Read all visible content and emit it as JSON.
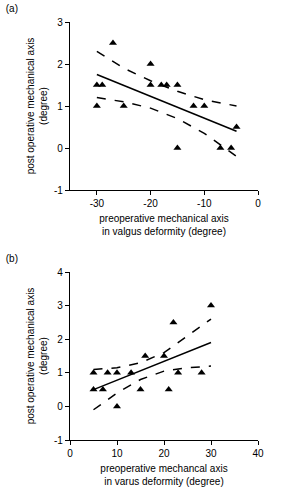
{
  "chart_data": [
    {
      "type": "scatter",
      "title": "(a)",
      "x_label": [
        "preoperative mechanical axis",
        "in valgus deformity (degree)"
      ],
      "y_label": [
        "post operative mechanical axis",
        "(degree)"
      ],
      "xlim": [
        -35,
        0
      ],
      "xticks": [
        -30,
        -20,
        -10,
        0
      ],
      "ylim": [
        -1,
        3
      ],
      "yticks": [
        -1,
        0,
        1,
        2,
        3
      ],
      "grid": false,
      "series": [
        {
          "type": "scatter",
          "marker": "triangle-up",
          "color": "#000000",
          "x": [
            -30,
            -29,
            -30,
            -27,
            -25,
            -20,
            -20,
            -18,
            -17,
            -15,
            -15,
            -12,
            -10,
            -7,
            -5,
            -4
          ],
          "values": [
            1.5,
            1.5,
            1.0,
            2.5,
            1.0,
            2.0,
            1.5,
            1.5,
            1.5,
            1.5,
            0.0,
            1.0,
            1.0,
            0.0,
            0.0,
            0.5
          ]
        },
        {
          "type": "line",
          "line_style": "solid",
          "color": "#000000",
          "x": [
            -30,
            -4
          ],
          "values": [
            1.75,
            0.4
          ]
        },
        {
          "type": "line",
          "line_style": "dashed",
          "color": "#000000",
          "x": [
            -30,
            -25,
            -20,
            -15,
            -10,
            -4
          ],
          "values": [
            2.3,
            1.9,
            1.6,
            1.35,
            1.15,
            1.0
          ]
        },
        {
          "type": "line",
          "line_style": "dashed",
          "color": "#000000",
          "x": [
            -30,
            -25,
            -20,
            -15,
            -10,
            -4
          ],
          "values": [
            1.2,
            1.1,
            0.95,
            0.7,
            0.35,
            -0.2
          ]
        }
      ]
    },
    {
      "type": "scatter",
      "title": "(b)",
      "x_label": [
        "preoperative mechancal axis",
        "in varus deformity (degree)"
      ],
      "y_label": [
        "post operative mechanical axis",
        "(degree)"
      ],
      "xlim": [
        0,
        40
      ],
      "xticks": [
        0,
        10,
        20,
        30,
        40
      ],
      "ylim": [
        -1,
        4
      ],
      "yticks": [
        -1,
        0,
        1,
        2,
        3,
        4
      ],
      "grid": false,
      "series": [
        {
          "type": "scatter",
          "marker": "triangle-up",
          "color": "#000000",
          "x": [
            5,
            5,
            7,
            8,
            10,
            10,
            13,
            15,
            16,
            20,
            21,
            22,
            23,
            28,
            30
          ],
          "values": [
            0.5,
            1.0,
            0.5,
            1.0,
            1.0,
            0.0,
            1.0,
            0.5,
            1.5,
            1.5,
            0.5,
            2.5,
            1.0,
            1.0,
            3.0
          ]
        },
        {
          "type": "line",
          "line_style": "solid",
          "color": "#000000",
          "x": [
            5,
            30
          ],
          "values": [
            0.5,
            1.9
          ]
        },
        {
          "type": "line",
          "line_style": "dashed",
          "color": "#000000",
          "x": [
            5,
            10,
            15,
            20,
            25,
            30
          ],
          "values": [
            1.1,
            1.15,
            1.3,
            1.6,
            2.1,
            2.6
          ]
        },
        {
          "type": "line",
          "line_style": "dashed",
          "color": "#000000",
          "x": [
            5,
            10,
            15,
            20,
            25,
            30
          ],
          "values": [
            -0.1,
            0.4,
            0.8,
            1.05,
            1.15,
            1.2
          ]
        }
      ]
    }
  ]
}
